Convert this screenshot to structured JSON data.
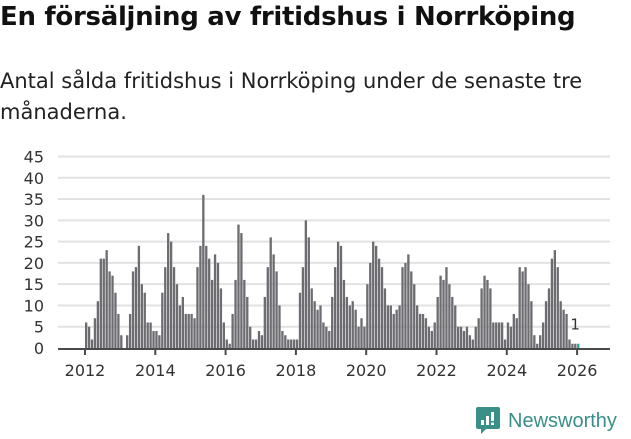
{
  "header": {
    "title": "En försäljning av fritidshus i Norrköping",
    "subtitle": "Antal sålda fritidshus i Norrköping under de senaste tre månaderna."
  },
  "brand": {
    "name": "Newsworthy",
    "color": "#3a8f88"
  },
  "colors": {
    "bar": "#6d6c71",
    "highlight": "#2aa198",
    "grid": "#e2e2e2",
    "axis": "#4a4a4a"
  },
  "chart_data": {
    "type": "bar",
    "title": "En försäljning av fritidshus i Norrköping",
    "subtitle": "Antal sålda fritidshus i Norrköping under de senaste tre månaderna.",
    "xlabel": "",
    "ylabel": "",
    "ylim": [
      0,
      45
    ],
    "yticks": [
      0,
      5,
      10,
      15,
      20,
      25,
      30,
      35,
      40,
      45
    ],
    "xticks": [
      "2012",
      "2014",
      "2016",
      "2018",
      "2020",
      "2022",
      "2024",
      "2026"
    ],
    "grid": true,
    "start": "2012-01",
    "frequency": "monthly",
    "annotation": {
      "label": "1",
      "point": "last"
    },
    "values": [
      6,
      5,
      2,
      7,
      11,
      21,
      21,
      23,
      18,
      17,
      13,
      8,
      3,
      0,
      3,
      8,
      18,
      19,
      24,
      15,
      13,
      6,
      6,
      4,
      4,
      3,
      13,
      19,
      27,
      25,
      19,
      15,
      10,
      12,
      8,
      8,
      8,
      7,
      19,
      24,
      36,
      24,
      21,
      16,
      22,
      20,
      14,
      6,
      2,
      1,
      8,
      16,
      29,
      27,
      16,
      12,
      5,
      2,
      2,
      4,
      3,
      12,
      19,
      26,
      22,
      18,
      10,
      4,
      3,
      2,
      2,
      2,
      2,
      13,
      19,
      30,
      26,
      14,
      11,
      9,
      10,
      6,
      5,
      4,
      12,
      19,
      25,
      24,
      16,
      12,
      10,
      11,
      9,
      5,
      7,
      5,
      15,
      20,
      25,
      24,
      21,
      19,
      14,
      10,
      10,
      8,
      9,
      10,
      19,
      20,
      22,
      18,
      15,
      10,
      8,
      8,
      7,
      5,
      4,
      6,
      12,
      17,
      16,
      19,
      15,
      12,
      10,
      5,
      5,
      4,
      5,
      3,
      2,
      5,
      7,
      14,
      17,
      16,
      14,
      6,
      6,
      6,
      6,
      2,
      6,
      5,
      8,
      7,
      19,
      18,
      19,
      15,
      11,
      3,
      1,
      3,
      6,
      11,
      14,
      21,
      23,
      19,
      11,
      9,
      8,
      2,
      1,
      1,
      1
    ]
  }
}
